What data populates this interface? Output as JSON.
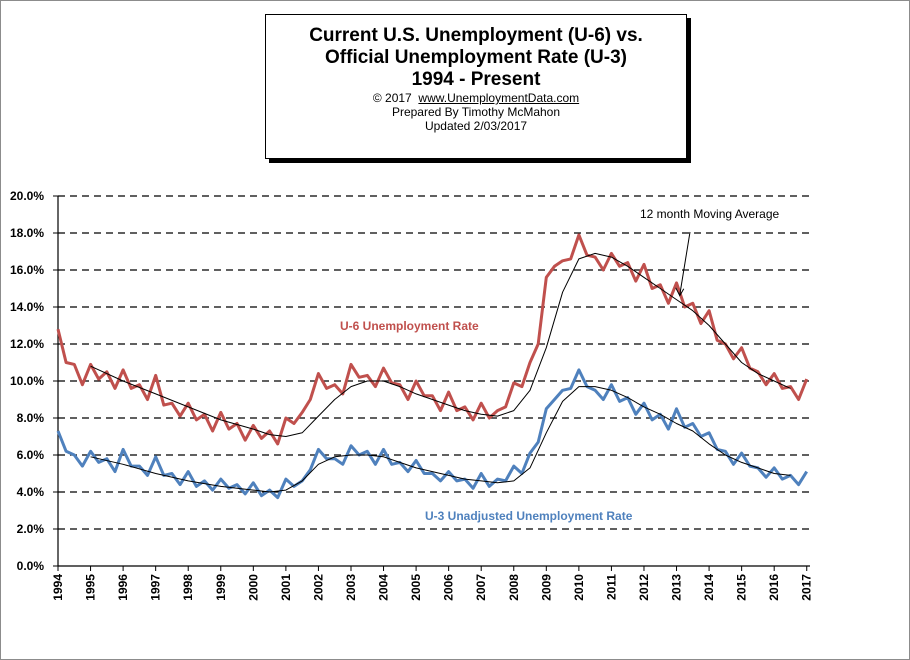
{
  "title_box": {
    "line1": "Current U.S. Unemployment (U-6) vs.",
    "line2": "Official Unemployment Rate (U-3)",
    "line3": "1994 - Present",
    "copyright": "© 2017",
    "website": "www.UnemploymentData.com",
    "prepared": "Prepared  By Timothy  McMahon",
    "updated": "Updated  2/03/2017"
  },
  "chart_data": {
    "type": "line",
    "title": "Current U.S. Unemployment (U-6) vs. Official Unemployment Rate (U-3) 1994 - Present",
    "xlabel": "",
    "ylabel": "",
    "x_ticks": [
      "1994",
      "1995",
      "1996",
      "1997",
      "1998",
      "1999",
      "2000",
      "2001",
      "2002",
      "2003",
      "2004",
      "2005",
      "2006",
      "2007",
      "2008",
      "2009",
      "2010",
      "2011",
      "2012",
      "2013",
      "2014",
      "2015",
      "2016",
      "2017"
    ],
    "xlim": [
      1994,
      2017.1
    ],
    "ylim": [
      0,
      20
    ],
    "y_ticks": [
      "0.0%",
      "2.0%",
      "4.0%",
      "6.0%",
      "8.0%",
      "10.0%",
      "12.0%",
      "14.0%",
      "16.0%",
      "18.0%",
      "20.0%"
    ],
    "grid": "horizontal dashed",
    "colors": {
      "u6": "#c0504d",
      "u3": "#4f81bd",
      "moving_average": "#000000"
    },
    "series": [
      {
        "name": "U-6 Unemployment Rate",
        "label_position": "middle-left",
        "x": [
          1994.0,
          1994.25,
          1994.5,
          1994.75,
          1995.0,
          1995.25,
          1995.5,
          1995.75,
          1996.0,
          1996.25,
          1996.5,
          1996.75,
          1997.0,
          1997.25,
          1997.5,
          1997.75,
          1998.0,
          1998.25,
          1998.5,
          1998.75,
          1999.0,
          1999.25,
          1999.5,
          1999.75,
          2000.0,
          2000.25,
          2000.5,
          2000.75,
          2001.0,
          2001.25,
          2001.5,
          2001.75,
          2002.0,
          2002.25,
          2002.5,
          2002.75,
          2003.0,
          2003.25,
          2003.5,
          2003.75,
          2004.0,
          2004.25,
          2004.5,
          2004.75,
          2005.0,
          2005.25,
          2005.5,
          2005.75,
          2006.0,
          2006.25,
          2006.5,
          2006.75,
          2007.0,
          2007.25,
          2007.5,
          2007.75,
          2008.0,
          2008.25,
          2008.5,
          2008.75,
          2009.0,
          2009.25,
          2009.5,
          2009.75,
          2010.0,
          2010.25,
          2010.5,
          2010.75,
          2011.0,
          2011.25,
          2011.5,
          2011.75,
          2012.0,
          2012.25,
          2012.5,
          2012.75,
          2013.0,
          2013.25,
          2013.5,
          2013.75,
          2014.0,
          2014.25,
          2014.5,
          2014.75,
          2015.0,
          2015.25,
          2015.5,
          2015.75,
          2016.0,
          2016.25,
          2016.5,
          2016.75,
          2017.0
        ],
        "values": [
          12.8,
          11.0,
          10.9,
          9.8,
          10.9,
          10.1,
          10.5,
          9.6,
          10.6,
          9.6,
          9.8,
          9.0,
          10.3,
          8.7,
          8.8,
          8.1,
          8.8,
          7.9,
          8.2,
          7.3,
          8.3,
          7.4,
          7.7,
          6.8,
          7.6,
          6.9,
          7.3,
          6.6,
          8.0,
          7.7,
          8.3,
          9.0,
          10.4,
          9.6,
          9.8,
          9.3,
          10.9,
          10.2,
          10.3,
          9.7,
          10.7,
          9.9,
          9.8,
          9.0,
          10.0,
          9.2,
          9.2,
          8.4,
          9.4,
          8.4,
          8.6,
          7.9,
          8.8,
          8.0,
          8.4,
          8.6,
          9.9,
          9.7,
          11.0,
          12.0,
          15.6,
          16.2,
          16.5,
          16.6,
          17.9,
          16.8,
          16.7,
          16.0,
          16.9,
          16.2,
          16.4,
          15.4,
          16.3,
          15.0,
          15.2,
          14.2,
          15.3,
          14.0,
          14.2,
          13.1,
          13.8,
          12.2,
          12.0,
          11.2,
          11.8,
          10.7,
          10.5,
          9.8,
          10.4,
          9.6,
          9.7,
          9.0,
          10.1
        ]
      },
      {
        "name": "U-3  Unadjusted Unemployment Rate",
        "label_position": "lower-center",
        "x": [
          1994.0,
          1994.25,
          1994.5,
          1994.75,
          1995.0,
          1995.25,
          1995.5,
          1995.75,
          1996.0,
          1996.25,
          1996.5,
          1996.75,
          1997.0,
          1997.25,
          1997.5,
          1997.75,
          1998.0,
          1998.25,
          1998.5,
          1998.75,
          1999.0,
          1999.25,
          1999.5,
          1999.75,
          2000.0,
          2000.25,
          2000.5,
          2000.75,
          2001.0,
          2001.25,
          2001.5,
          2001.75,
          2002.0,
          2002.25,
          2002.5,
          2002.75,
          2003.0,
          2003.25,
          2003.5,
          2003.75,
          2004.0,
          2004.25,
          2004.5,
          2004.75,
          2005.0,
          2005.25,
          2005.5,
          2005.75,
          2006.0,
          2006.25,
          2006.5,
          2006.75,
          2007.0,
          2007.25,
          2007.5,
          2007.75,
          2008.0,
          2008.25,
          2008.5,
          2008.75,
          2009.0,
          2009.25,
          2009.5,
          2009.75,
          2010.0,
          2010.25,
          2010.5,
          2010.75,
          2011.0,
          2011.25,
          2011.5,
          2011.75,
          2012.0,
          2012.25,
          2012.5,
          2012.75,
          2013.0,
          2013.25,
          2013.5,
          2013.75,
          2014.0,
          2014.25,
          2014.5,
          2014.75,
          2015.0,
          2015.25,
          2015.5,
          2015.75,
          2016.0,
          2016.25,
          2016.5,
          2016.75,
          2017.0
        ],
        "values": [
          7.3,
          6.2,
          6.0,
          5.4,
          6.2,
          5.6,
          5.8,
          5.1,
          6.3,
          5.4,
          5.4,
          4.9,
          5.9,
          4.9,
          5.0,
          4.4,
          5.1,
          4.3,
          4.6,
          4.1,
          4.7,
          4.2,
          4.4,
          3.9,
          4.5,
          3.8,
          4.1,
          3.7,
          4.7,
          4.3,
          4.6,
          5.2,
          6.3,
          5.8,
          5.8,
          5.5,
          6.5,
          6.0,
          6.2,
          5.5,
          6.3,
          5.5,
          5.6,
          5.1,
          5.7,
          5.0,
          5.0,
          4.6,
          5.1,
          4.6,
          4.7,
          4.2,
          5.0,
          4.3,
          4.7,
          4.6,
          5.4,
          5.0,
          6.1,
          6.7,
          8.5,
          9.0,
          9.5,
          9.6,
          10.6,
          9.7,
          9.5,
          9.0,
          9.8,
          8.9,
          9.1,
          8.2,
          8.8,
          7.9,
          8.2,
          7.4,
          8.5,
          7.5,
          7.7,
          7.0,
          7.2,
          6.3,
          6.2,
          5.5,
          6.1,
          5.4,
          5.3,
          4.8,
          5.3,
          4.7,
          4.9,
          4.4,
          5.1
        ]
      },
      {
        "name": "U-6 12 month Moving Average",
        "x": [
          1995.0,
          1996.0,
          1997.0,
          1998.0,
          1999.0,
          2000.0,
          2000.5,
          2001.0,
          2001.5,
          2002.0,
          2002.5,
          2003.0,
          2003.5,
          2004.0,
          2004.5,
          2005.0,
          2005.5,
          2006.0,
          2006.5,
          2007.0,
          2007.5,
          2008.0,
          2008.5,
          2009.0,
          2009.5,
          2010.0,
          2010.5,
          2011.0,
          2011.5,
          2012.0,
          2012.5,
          2013.0,
          2013.5,
          2014.0,
          2014.5,
          2015.0,
          2015.5,
          2016.0,
          2016.5
        ],
        "values": [
          10.8,
          10.0,
          9.3,
          8.6,
          7.9,
          7.4,
          7.1,
          7.0,
          7.2,
          8.1,
          9.0,
          9.7,
          10.0,
          10.0,
          9.7,
          9.3,
          9.0,
          8.7,
          8.4,
          8.2,
          8.1,
          8.4,
          9.5,
          11.8,
          14.8,
          16.6,
          16.9,
          16.7,
          16.2,
          15.6,
          15.0,
          14.4,
          13.8,
          13.0,
          12.0,
          11.0,
          10.4,
          10.0,
          9.6
        ]
      },
      {
        "name": "U-3 12 month Moving Average",
        "x": [
          1995.0,
          1996.0,
          1997.0,
          1998.0,
          1999.0,
          2000.0,
          2000.5,
          2001.0,
          2001.5,
          2002.0,
          2002.5,
          2003.0,
          2003.5,
          2004.0,
          2004.5,
          2005.0,
          2005.5,
          2006.0,
          2006.5,
          2007.0,
          2007.5,
          2008.0,
          2008.5,
          2009.0,
          2009.5,
          2010.0,
          2010.5,
          2011.0,
          2011.5,
          2012.0,
          2012.5,
          2013.0,
          2013.5,
          2014.0,
          2014.5,
          2015.0,
          2015.5,
          2016.0,
          2016.5
        ],
        "values": [
          5.9,
          5.5,
          5.0,
          4.6,
          4.3,
          4.1,
          4.0,
          4.1,
          4.6,
          5.5,
          5.9,
          6.0,
          6.0,
          5.9,
          5.6,
          5.3,
          5.1,
          4.9,
          4.7,
          4.6,
          4.5,
          4.6,
          5.3,
          7.2,
          8.9,
          9.7,
          9.7,
          9.5,
          9.1,
          8.6,
          8.2,
          7.7,
          7.3,
          6.6,
          6.0,
          5.6,
          5.3,
          5.0,
          4.9
        ]
      }
    ],
    "annotations": [
      {
        "text": "12 month Moving Average",
        "points_to_x": 2013.1,
        "points_to_y": 14.5
      }
    ]
  }
}
